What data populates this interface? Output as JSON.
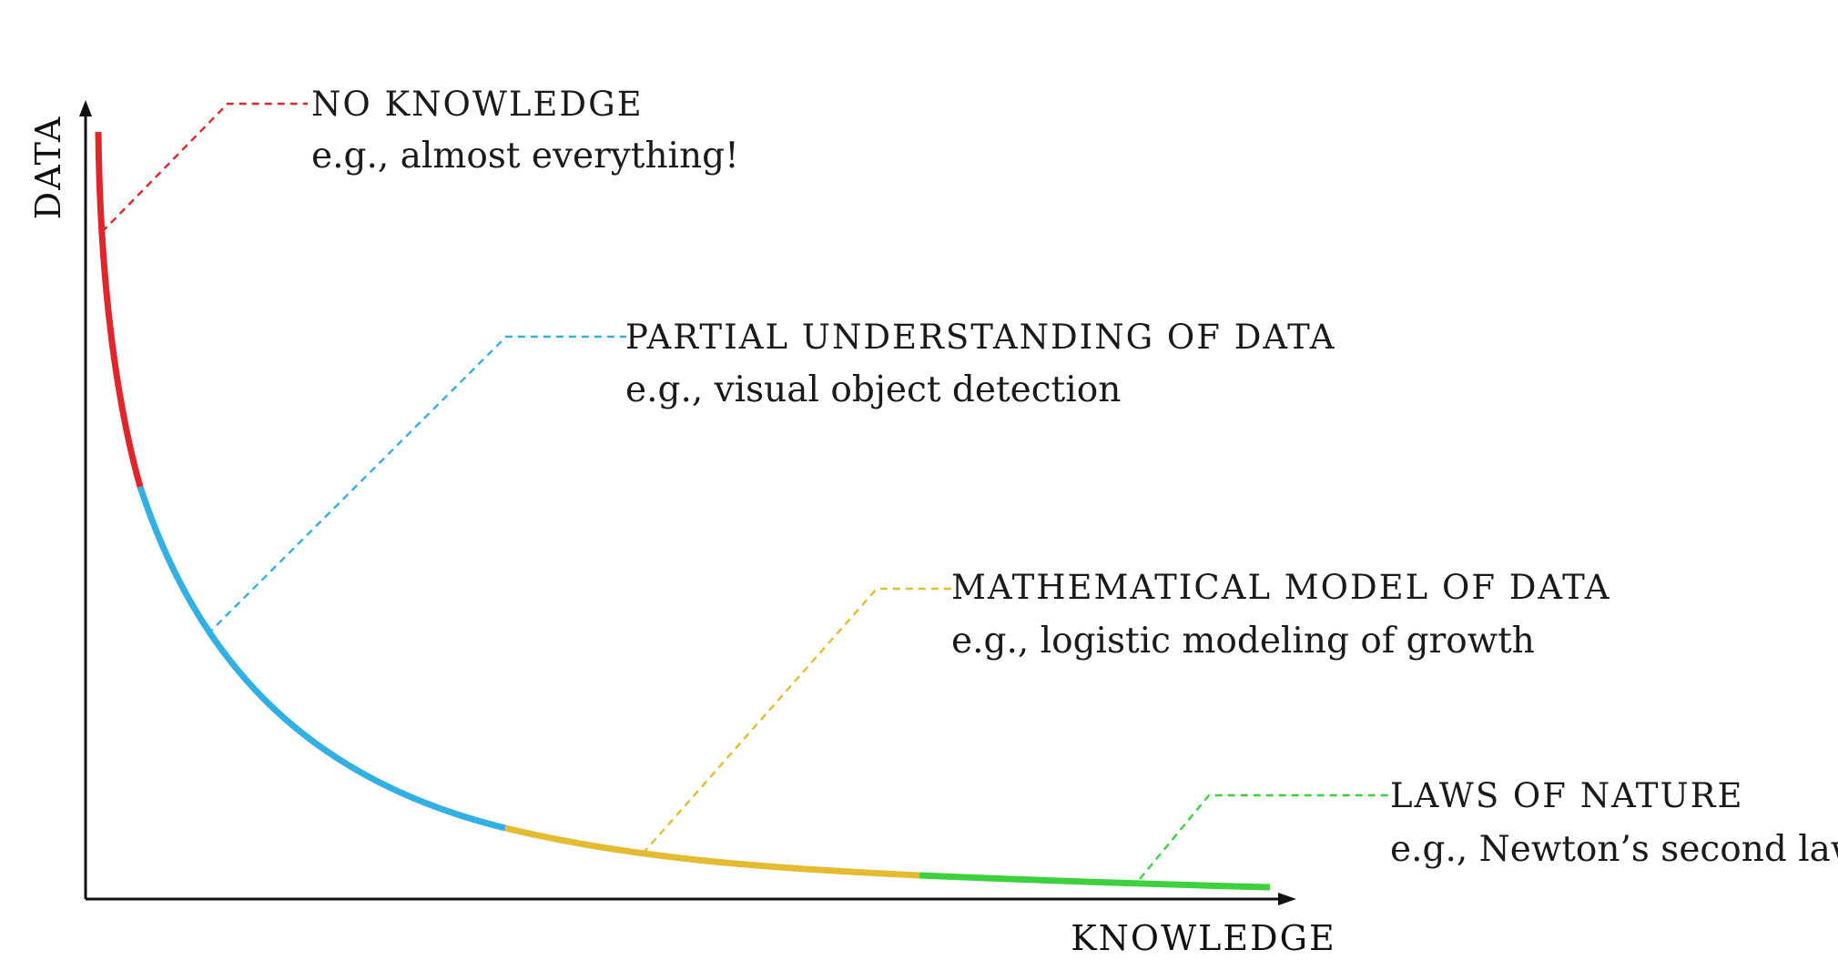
{
  "axes": {
    "y_label": "DATA",
    "x_label": "KNOWLEDGE"
  },
  "zones": [
    {
      "key": "no-knowledge",
      "title": "NO KNOWLEDGE",
      "example": "e.g., almost everything!",
      "color": "#e0262b"
    },
    {
      "key": "partial-understanding",
      "title": "PARTIAL UNDERSTANDING OF DATA",
      "example": "e.g., visual object detection",
      "color": "#33b0e3"
    },
    {
      "key": "mathematical-model",
      "title": "MATHEMATICAL MODEL OF DATA",
      "example": "e.g., logistic modeling of growth",
      "color": "#e5bb32"
    },
    {
      "key": "laws-of-nature",
      "title": "LAWS OF NATURE",
      "example": "e.g., Newton’s second law",
      "color": "#3dd13d"
    }
  ]
}
